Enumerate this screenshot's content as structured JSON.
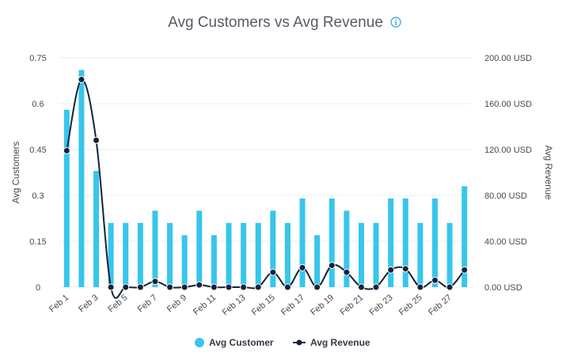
{
  "chart_data": {
    "type": "bar",
    "title": "Avg Customers vs Avg Revenue",
    "categories": [
      "Feb 1",
      "Feb 2",
      "Feb 3",
      "Feb 4",
      "Feb 5",
      "Feb 6",
      "Feb 7",
      "Feb 8",
      "Feb 9",
      "Feb 10",
      "Feb 11",
      "Feb 12",
      "Feb 13",
      "Feb 14",
      "Feb 15",
      "Feb 16",
      "Feb 17",
      "Feb 18",
      "Feb 19",
      "Feb 20",
      "Feb 21",
      "Feb 22",
      "Feb 23",
      "Feb 24",
      "Feb 25",
      "Feb 26",
      "Feb 27",
      "Feb 28"
    ],
    "x_tick_labels": [
      "Feb 1",
      "Feb 3",
      "Feb 5",
      "Feb 7",
      "Feb 9",
      "Feb 11",
      "Feb 13",
      "Feb 15",
      "Feb 17",
      "Feb 19",
      "Feb 21",
      "Feb 23",
      "Feb 25",
      "Feb 27"
    ],
    "series": [
      {
        "name": "Avg Customer",
        "type": "bar",
        "axis": "left",
        "color": "#37c6ec",
        "values": [
          0.58,
          0.71,
          0.38,
          0.21,
          0.21,
          0.21,
          0.25,
          0.21,
          0.17,
          0.25,
          0.17,
          0.21,
          0.21,
          0.21,
          0.25,
          0.21,
          0.29,
          0.17,
          0.29,
          0.25,
          0.21,
          0.21,
          0.29,
          0.29,
          0.21,
          0.29,
          0.21,
          0.33
        ]
      },
      {
        "name": "Avg Revenue",
        "type": "line",
        "axis": "right",
        "color": "#13233a",
        "values": [
          119,
          181,
          128,
          0,
          0,
          0,
          5,
          0,
          0,
          2,
          0,
          0,
          0,
          0,
          13,
          0,
          17,
          0,
          19,
          13,
          0,
          0,
          15,
          16,
          0,
          6,
          0,
          15
        ]
      }
    ],
    "y_left": {
      "label": "Avg Customers",
      "ticks": [
        "0",
        "0.15",
        "0.3",
        "0.45",
        "0.6",
        "0.75"
      ],
      "tick_values": [
        0,
        0.15,
        0.3,
        0.45,
        0.6,
        0.75
      ],
      "ylim": [
        0,
        0.75
      ]
    },
    "y_right": {
      "label": "Avg Revenue",
      "ticks": [
        "0.00 USD",
        "40.00 USD",
        "80.00 USD",
        "120.00 USD",
        "160.00 USD",
        "200.00 USD"
      ],
      "tick_values": [
        0,
        40,
        80,
        120,
        160,
        200
      ],
      "ylim": [
        0,
        200
      ]
    },
    "grid": true,
    "legend_position": "bottom-center"
  }
}
